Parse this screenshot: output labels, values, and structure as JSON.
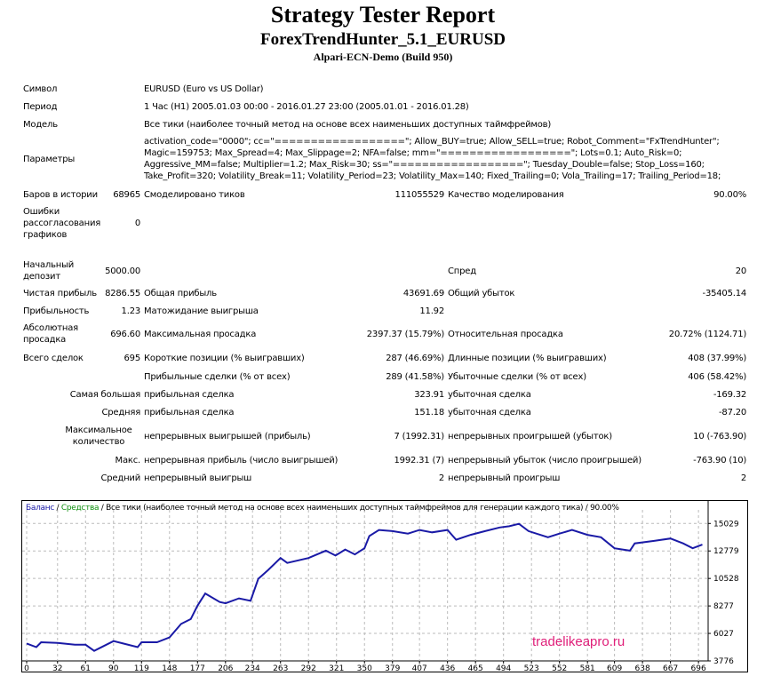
{
  "header": {
    "title": "Strategy Tester Report",
    "expert": "ForexTrendHunter_5.1_EURUSD",
    "server": "Alpari-ECN-Demo (Build 950)"
  },
  "info": {
    "symbol_label": "Символ",
    "symbol": "EURUSD (Euro vs US Dollar)",
    "period_label": "Период",
    "period": "1 Час (H1) 2005.01.03 00:00 - 2016.01.27 23:00 (2005.01.01 - 2016.01.28)",
    "model_label": "Модель",
    "model": "Все тики (наиболее точный метод на основе всех наименьших доступных таймфреймов)",
    "params_label": "Параметры",
    "params": [
      "activation_code=\"0000\"; cc=\"==================\"; Allow_BUY=true; Allow_SELL=true; Robot_Comment=\"FxTrendHunter\";",
      "Magic=159753; Max_Spread=4; Max_Slippage=2; NFA=false; mm=\"==================\"; Lots=0.1; Auto_Risk=0;",
      "Aggressive_MM=false; Multiplier=1.2; Max_Risk=30; ss=\"==================\"; Tuesday_Double=false; Stop_Loss=160;",
      "Take_Profit=320; Volatility_Break=11; Volatility_Period=23; Volatility_Max=140; Fixed_Trailing=0; Vola_Trailing=17; Trailing_Period=18;"
    ]
  },
  "stats": {
    "bars_label": "Баров в истории",
    "bars": "68965",
    "ticks_label": "Смоделировано тиков",
    "ticks": "111055529",
    "quality_label": "Качество моделирования",
    "quality": "90.00%",
    "errors_label": "Ошибки рассогласования графиков",
    "errors": "0",
    "deposit_label": "Начальный депозит",
    "deposit": "5000.00",
    "spread_label": "Спред",
    "spread": "20",
    "net_label": "Чистая прибыль",
    "net": "8286.55",
    "gross_profit_label": "Общая прибыль",
    "gross_profit": "43691.69",
    "gross_loss_label": "Общий убыток",
    "gross_loss": "-35405.14",
    "pf_label": "Прибыльность",
    "pf": "1.23",
    "expected_label": "Матожидание выигрыша",
    "expected": "11.92",
    "abs_dd_label": "Абсолютная просадка",
    "abs_dd": "696.60",
    "max_dd_label": "Максимальная просадка",
    "max_dd": "2397.37 (15.79%)",
    "rel_dd_label": "Относительная просадка",
    "rel_dd": "20.72% (1124.71)",
    "trades_label": "Всего сделок",
    "trades": "695",
    "short_label": "Короткие позиции (% выигравших)",
    "short": "287 (46.69%)",
    "long_label": "Длинные позиции (% выигравших)",
    "long": "408 (37.99%)",
    "profit_trades_label": "Прибыльные сделки (% от всех)",
    "profit_trades": "289 (41.58%)",
    "loss_trades_label": "Убыточные сделки (% от всех)",
    "loss_trades": "406 (58.42%)",
    "largest_label": "Самая большая",
    "largest_profit_label": "прибыльная сделка",
    "largest_profit": "323.91",
    "largest_loss_label": "убыточная сделка",
    "largest_loss": "-169.32",
    "average_label": "Средняя",
    "average_profit_label": "прибыльная сделка",
    "average_profit": "151.18",
    "average_loss_label": "убыточная сделка",
    "average_loss": "-87.20",
    "max_count_label": "Максимальное количество",
    "max_wins_label": "непрерывных выигрышей (прибыль)",
    "max_wins": "7 (1992.31)",
    "max_losses_label": "непрерывных проигрышей (убыток)",
    "max_losses": "10 (-763.90)",
    "max_sum_label": "Макс.",
    "max_profit_label": "непрерывная прибыль (число выигрышей)",
    "max_profit": "1992.31 (7)",
    "max_loss_label": "непрерывный убыток (число проигрышей)",
    "max_loss": "-763.90 (10)",
    "avg_cons_label": "Средний",
    "avg_wins_label": "непрерывный выигрыш",
    "avg_wins": "2",
    "avg_losses_label": "непрерывный проигрыш",
    "avg_losses": "2"
  },
  "chart_data": {
    "type": "line",
    "legend": {
      "balance": "Баланс",
      "sep1": " / ",
      "equity": "Средства",
      "rest": " / Все тики (наиболее точный метод на основе всех наименьших доступных таймфреймов для генерации каждого тика) / 90.00%"
    },
    "colors": {
      "balance": "#1a1aa6",
      "equity": "#109010",
      "watermark": "#e0207a"
    },
    "watermark": "tradelikeapro.ru",
    "xticks": [
      0,
      32,
      61,
      90,
      119,
      148,
      177,
      206,
      234,
      263,
      292,
      321,
      350,
      379,
      407,
      436,
      465,
      494,
      523,
      552,
      581,
      609,
      638,
      667,
      696
    ],
    "yticks": [
      3776,
      6027,
      8277,
      10528,
      12779,
      15029
    ],
    "xlim": [
      0,
      706
    ],
    "ylim": [
      3776,
      15400
    ],
    "series": [
      {
        "name": "Баланс",
        "x": [
          0,
          10,
          15,
          32,
          50,
          61,
          70,
          80,
          90,
          100,
          115,
          119,
          135,
          148,
          160,
          170,
          177,
          185,
          200,
          206,
          220,
          232,
          240,
          250,
          263,
          270,
          292,
          310,
          320,
          330,
          340,
          350,
          355,
          365,
          379,
          395,
          407,
          420,
          436,
          445,
          460,
          475,
          490,
          500,
          510,
          520,
          540,
          552,
          565,
          581,
          595,
          609,
          625,
          630,
          650,
          667,
          680,
          690,
          700
        ],
        "y": [
          5200,
          4900,
          5300,
          5250,
          5100,
          5100,
          4600,
          5000,
          5400,
          5200,
          4900,
          5300,
          5300,
          5700,
          6800,
          7200,
          8300,
          9300,
          8600,
          8500,
          8900,
          8700,
          10500,
          11200,
          12200,
          11800,
          12200,
          12800,
          12400,
          12900,
          12500,
          13000,
          14000,
          14500,
          14400,
          14200,
          14500,
          14300,
          14500,
          13700,
          14100,
          14400,
          14700,
          14800,
          15000,
          14400,
          13900,
          14200,
          14500,
          14100,
          13900,
          13000,
          12800,
          13400,
          13600,
          13800,
          13400,
          13000,
          13300
        ]
      }
    ]
  }
}
